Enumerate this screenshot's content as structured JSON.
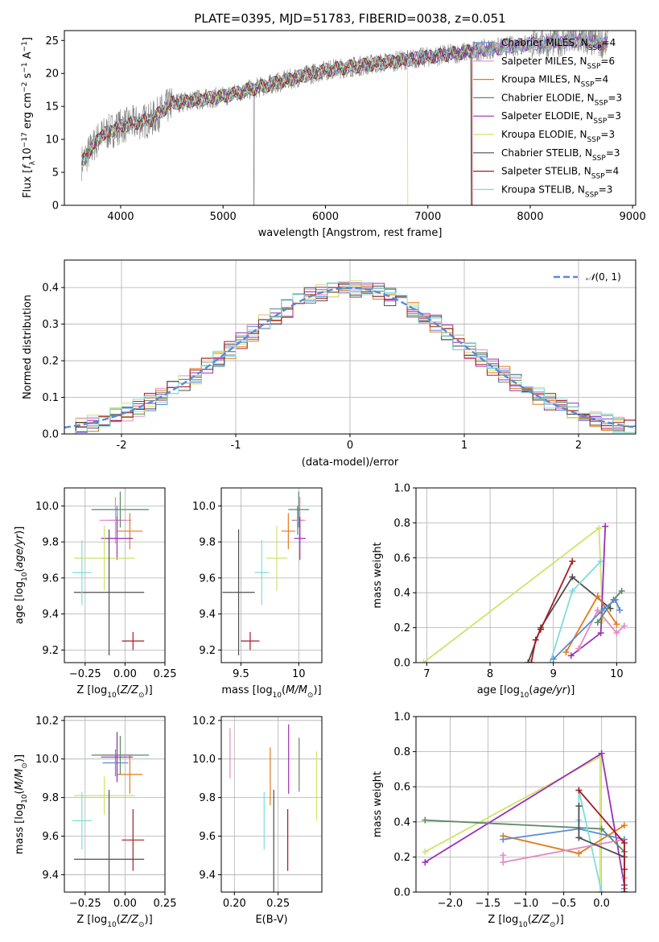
{
  "title": "PLATE=0395, MJD=51783, FIBERID=0038, z=0.051",
  "colors": {
    "Chabrier MILES": "#5b8ad7",
    "Salpeter MILES": "#e58ac3",
    "Kroupa MILES": "#e07b1a",
    "Chabrier ELODIE": "#5a8a62",
    "Salpeter ELODIE": "#9a2fb8",
    "Kroupa ELODIE": "#cfe36a",
    "Chabrier STELIB": "#4d4d4d",
    "Salpeter STELIB": "#a51d24",
    "Kroupa STELIB": "#7fdcdc",
    "normal": "#5b8ad7",
    "data": "#808080"
  },
  "chart_data": [
    {
      "id": "spectrum",
      "type": "line",
      "xlabel": "wavelength [Angstrom, rest frame]",
      "ylabel": "Flux [f_λ10^-17 erg cm^-2 s^-1 A^-1]",
      "xlim": [
        3450,
        9030
      ],
      "ylim": [
        0,
        26.5
      ],
      "xticks": [
        4000,
        5000,
        6000,
        7000,
        8000,
        9000
      ],
      "yticks": [
        0,
        5,
        10,
        15,
        20,
        25
      ],
      "grid": false,
      "legend_position": "top-right",
      "legend": [
        {
          "name": "Chabrier MILES",
          "n_ssp": 4
        },
        {
          "name": "Salpeter MILES",
          "n_ssp": 6
        },
        {
          "name": "Kroupa MILES",
          "n_ssp": 4
        },
        {
          "name": "Chabrier ELODIE",
          "n_ssp": 3
        },
        {
          "name": "Salpeter ELODIE",
          "n_ssp": 3
        },
        {
          "name": "Kroupa ELODIE",
          "n_ssp": 3
        },
        {
          "name": "Chabrier STELIB",
          "n_ssp": 3
        },
        {
          "name": "Salpeter STELIB",
          "n_ssp": 4
        },
        {
          "name": "Kroupa STELIB",
          "n_ssp": 3
        }
      ],
      "continuum": [
        [
          3620,
          6.5
        ],
        [
          3800,
          10.5
        ],
        [
          4000,
          12
        ],
        [
          4300,
          13
        ],
        [
          4500,
          15.5
        ],
        [
          5000,
          16.5
        ],
        [
          5500,
          18.5
        ],
        [
          6000,
          20.5
        ],
        [
          6500,
          21.5
        ],
        [
          7000,
          22.5
        ],
        [
          7500,
          23.5
        ],
        [
          8000,
          24.5
        ],
        [
          8500,
          25
        ],
        [
          8760,
          24.5
        ]
      ],
      "model_ranges": [
        {
          "name": "Kroupa ELODIE",
          "x": [
            3620,
            6800
          ]
        },
        {
          "name": "Chabrier STELIB",
          "x": [
            3620,
            7420
          ]
        },
        {
          "name": "Salpeter STELIB",
          "x": [
            3620,
            7430
          ]
        },
        {
          "name": "Kroupa STELIB",
          "x": [
            3620,
            8700
          ]
        }
      ]
    },
    {
      "id": "residual-histogram",
      "type": "step",
      "xlabel": "(data-model)/error",
      "ylabel": "Normed distribution",
      "xlim": [
        -2.5,
        2.5
      ],
      "ylim": [
        0,
        0.475
      ],
      "xticks": [
        -2,
        -1,
        0,
        1,
        2
      ],
      "yticks": [
        0.0,
        0.1,
        0.2,
        0.3,
        0.4
      ],
      "grid": true,
      "legend": [
        "𝒩(0, 1)"
      ],
      "legend_position": "top-right",
      "bin_width": 0.1,
      "mean_curve": "Gaussian N(0,1)"
    },
    {
      "id": "z-vs-age",
      "type": "errorbar",
      "xlabel": "Z [log10(Z/Z⊙)]",
      "ylabel": "age  [log10(age/yr)]",
      "xlim": [
        -0.38,
        0.25
      ],
      "ylim": [
        9.13,
        10.1
      ],
      "xticks": [
        -0.25,
        0.0,
        0.25
      ],
      "xtick_labels": [
        "−0.25",
        "0.00",
        "0.25"
      ],
      "yticks": [
        9.2,
        9.4,
        9.6,
        9.8,
        10.0
      ],
      "grid": true,
      "points": [
        {
          "name": "Chabrier MILES",
          "x": -0.05,
          "xerr": 0.05,
          "y": 9.92,
          "yerr": 0.08
        },
        {
          "name": "Salpeter MILES",
          "x": -0.06,
          "xerr": 0.1,
          "y": 9.92,
          "yerr": 0.13
        },
        {
          "name": "Kroupa MILES",
          "x": 0.03,
          "xerr": 0.08,
          "y": 9.86,
          "yerr": 0.1
        },
        {
          "name": "Chabrier ELODIE",
          "x": -0.03,
          "xerr": 0.18,
          "y": 9.98,
          "yerr": 0.1
        },
        {
          "name": "Salpeter ELODIE",
          "x": -0.05,
          "xerr": 0.1,
          "y": 9.82,
          "yerr": 0.12
        },
        {
          "name": "Kroupa ELODIE",
          "x": -0.13,
          "xerr": 0.19,
          "y": 9.71,
          "yerr": 0.18
        },
        {
          "name": "Chabrier STELIB",
          "x": -0.1,
          "xerr": 0.22,
          "y": 9.52,
          "yerr": 0.35
        },
        {
          "name": "Salpeter STELIB",
          "x": 0.05,
          "xerr": 0.07,
          "y": 9.25,
          "yerr": 0.05
        },
        {
          "name": "Kroupa STELIB",
          "x": -0.27,
          "xerr": 0.06,
          "y": 9.63,
          "yerr": 0.18
        }
      ]
    },
    {
      "id": "mass-vs-age",
      "type": "errorbar",
      "xlabel": "mass [log10(M/M⊙)]",
      "ylabel": "",
      "xlim": [
        9.33,
        10.2
      ],
      "ylim": [
        9.13,
        10.1
      ],
      "xticks": [
        9.5,
        10.0
      ],
      "yticks": [
        9.2,
        9.4,
        9.6,
        9.8,
        10.0
      ],
      "grid": true,
      "points": [
        {
          "name": "Chabrier MILES",
          "x": 9.99,
          "xerr": 0.05,
          "y": 9.92,
          "yerr": 0.08
        },
        {
          "name": "Salpeter MILES",
          "x": 10.01,
          "xerr": 0.05,
          "y": 9.92,
          "yerr": 0.13
        },
        {
          "name": "Kroupa MILES",
          "x": 9.91,
          "xerr": 0.06,
          "y": 9.86,
          "yerr": 0.1
        },
        {
          "name": "Chabrier ELODIE",
          "x": 10.0,
          "xerr": 0.09,
          "y": 9.98,
          "yerr": 0.1
        },
        {
          "name": "Salpeter ELODIE",
          "x": 10.01,
          "xerr": 0.05,
          "y": 9.82,
          "yerr": 0.12
        },
        {
          "name": "Kroupa ELODIE",
          "x": 9.81,
          "xerr": 0.09,
          "y": 9.71,
          "yerr": 0.18
        },
        {
          "name": "Chabrier STELIB",
          "x": 9.48,
          "xerr": 0.14,
          "y": 9.52,
          "yerr": 0.35
        },
        {
          "name": "Salpeter STELIB",
          "x": 9.58,
          "xerr": 0.08,
          "y": 9.25,
          "yerr": 0.05
        },
        {
          "name": "Kroupa STELIB",
          "x": 9.68,
          "xerr": 0.06,
          "y": 9.63,
          "yerr": 0.18
        }
      ]
    },
    {
      "id": "age-vs-weight",
      "type": "line",
      "xlabel": "age  [log10(age/yr)]",
      "ylabel": "mass weight",
      "xlim": [
        6.83,
        10.3
      ],
      "ylim": [
        0,
        1.0
      ],
      "xticks": [
        7,
        8,
        9,
        10
      ],
      "yticks": [
        0.0,
        0.2,
        0.4,
        0.6,
        0.8,
        1.0
      ],
      "grid": true,
      "series": [
        {
          "name": "Kroupa ELODIE",
          "x": [
            6.95,
            9.72,
            9.78
          ],
          "y": [
            0.0,
            0.77,
            0.24
          ]
        },
        {
          "name": "Chabrier STELIB",
          "x": [
            8.6,
            8.8,
            9.3,
            9.9
          ],
          "y": [
            0.0,
            0.2,
            0.49,
            0.31
          ]
        },
        {
          "name": "Salpeter STELIB",
          "x": [
            8.65,
            8.72,
            8.8,
            9.3
          ],
          "y": [
            0.0,
            0.13,
            0.19,
            0.58
          ]
        },
        {
          "name": "Kroupa STELIB",
          "x": [
            8.95,
            9.3,
            9.75
          ],
          "y": [
            0.0,
            0.41,
            0.58
          ]
        },
        {
          "name": "Salpeter ELODIE",
          "x": [
            9.28,
            9.75,
            9.82
          ],
          "y": [
            0.04,
            0.17,
            0.78
          ]
        },
        {
          "name": "Kroupa MILES",
          "x": [
            9.2,
            9.7,
            10.0
          ],
          "y": [
            0.06,
            0.38,
            0.22
          ]
        },
        {
          "name": "Salpeter MILES",
          "x": [
            9.4,
            9.7,
            10.0,
            10.12
          ],
          "y": [
            0.08,
            0.3,
            0.17,
            0.21
          ]
        },
        {
          "name": "Chabrier ELODIE",
          "x": [
            9.7,
            9.95,
            10.08
          ],
          "y": [
            0.23,
            0.36,
            0.41
          ]
        },
        {
          "name": "Chabrier MILES",
          "x": [
            9.0,
            9.8,
            9.98,
            10.05
          ],
          "y": [
            0.02,
            0.31,
            0.36,
            0.3
          ]
        }
      ]
    },
    {
      "id": "z-vs-mass",
      "type": "errorbar",
      "xlabel": "Z [log10(Z/Z⊙)]",
      "ylabel": "mass [log10(M/M⊙)]",
      "xlim": [
        -0.38,
        0.25
      ],
      "ylim": [
        9.31,
        10.22
      ],
      "xticks": [
        -0.25,
        0.0,
        0.25
      ],
      "xtick_labels": [
        "−0.25",
        "0.00",
        "0.25"
      ],
      "yticks": [
        9.4,
        9.6,
        9.8,
        10.0,
        10.2
      ],
      "grid": true,
      "points": [
        {
          "name": "Chabrier MILES",
          "x": -0.06,
          "xerr": 0.08,
          "y": 9.98,
          "yerr": 0.07
        },
        {
          "name": "Salpeter MILES",
          "x": -0.05,
          "xerr": 0.1,
          "y": 10.02,
          "yerr": 0.12
        },
        {
          "name": "Kroupa MILES",
          "x": 0.03,
          "xerr": 0.08,
          "y": 9.92,
          "yerr": 0.1
        },
        {
          "name": "Chabrier ELODIE",
          "x": -0.03,
          "xerr": 0.18,
          "y": 10.02,
          "yerr": 0.1
        },
        {
          "name": "Salpeter ELODIE",
          "x": -0.05,
          "xerr": 0.1,
          "y": 10.01,
          "yerr": 0.13
        },
        {
          "name": "Kroupa ELODIE",
          "x": -0.13,
          "xerr": 0.19,
          "y": 9.81,
          "yerr": 0.1
        },
        {
          "name": "Chabrier STELIB",
          "x": -0.1,
          "xerr": 0.22,
          "y": 9.48,
          "yerr": 0.36
        },
        {
          "name": "Salpeter STELIB",
          "x": 0.05,
          "xerr": 0.07,
          "y": 9.58,
          "yerr": 0.16
        },
        {
          "name": "Kroupa STELIB",
          "x": -0.27,
          "xerr": 0.06,
          "y": 9.68,
          "yerr": 0.15
        }
      ]
    },
    {
      "id": "ebv-vs-mass",
      "type": "errorbar",
      "xlabel": "E(B-V)",
      "ylabel": "",
      "xlim": [
        0.185,
        0.3
      ],
      "ylim": [
        9.31,
        10.22
      ],
      "xticks": [
        0.2,
        0.25
      ],
      "xtick_labels": [
        "0.20",
        "0.25"
      ],
      "yticks": [
        9.4,
        9.6,
        9.8,
        10.0,
        10.2
      ],
      "grid": true,
      "points": [
        {
          "name": "Salpeter MILES",
          "x": 0.195,
          "y": 10.03,
          "yerr": 0.13
        },
        {
          "name": "Chabrier STELIB",
          "x": 0.245,
          "y": 9.48,
          "yerr": 0.36
        },
        {
          "name": "Kroupa STELIB",
          "x": 0.234,
          "y": 9.68,
          "yerr": 0.15
        },
        {
          "name": "Kroupa MILES",
          "x": 0.241,
          "y": 9.91,
          "yerr": 0.15
        },
        {
          "name": "Salpeter STELIB",
          "x": 0.261,
          "y": 9.58,
          "yerr": 0.16
        },
        {
          "name": "Salpeter ELODIE",
          "x": 0.262,
          "y": 10.0,
          "yerr": 0.18
        },
        {
          "name": "Chabrier ELODIE",
          "x": 0.274,
          "y": 9.97,
          "yerr": 0.14
        },
        {
          "name": "Kroupa ELODIE",
          "x": 0.294,
          "y": 9.86,
          "yerr": 0.18
        }
      ]
    },
    {
      "id": "z-vs-weight",
      "type": "line",
      "xlabel": "Z [log10(Z/Z⊙)]",
      "ylabel": "mass weight",
      "xlim": [
        -2.45,
        0.45
      ],
      "ylim": [
        0,
        1.0
      ],
      "xticks": [
        -2.0,
        -1.5,
        -1.0,
        -0.5,
        0.0
      ],
      "xtick_labels": [
        "−2.0",
        "−1.5",
        "−1.0",
        "−0.5",
        "0.0"
      ],
      "yticks": [
        0.0,
        0.2,
        0.4,
        0.6,
        0.8,
        1.0
      ],
      "grid": true,
      "series": [
        {
          "name": "Kroupa ELODIE",
          "x": [
            -2.33,
            -0.02,
            -0.02
          ],
          "y": [
            0.23,
            0.77,
            0.0
          ]
        },
        {
          "name": "Salpeter ELODIE",
          "x": [
            -2.33,
            0.0,
            0.3
          ],
          "y": [
            0.17,
            0.79,
            0.04
          ]
        },
        {
          "name": "Chabrier ELODIE",
          "x": [
            -2.33,
            0.0,
            0.3
          ],
          "y": [
            0.41,
            0.36,
            0.23
          ]
        },
        {
          "name": "Kroupa MILES",
          "x": [
            -1.3,
            -0.3,
            0.3
          ],
          "y": [
            0.32,
            0.22,
            0.38
          ]
        },
        {
          "name": "Salpeter MILES",
          "x": [
            -1.3,
            -1.3,
            0.3,
            0.3
          ],
          "y": [
            0.21,
            0.17,
            0.3,
            0.08
          ]
        },
        {
          "name": "Chabrier MILES",
          "x": [
            -1.3,
            -0.3,
            0.3,
            0.3
          ],
          "y": [
            0.3,
            0.36,
            0.3,
            0.02
          ]
        },
        {
          "name": "Kroupa STELIB",
          "x": [
            -0.3,
            -0.3,
            0.0
          ],
          "y": [
            0.41,
            0.58,
            0.0
          ]
        },
        {
          "name": "Chabrier STELIB",
          "x": [
            -0.3,
            -0.3,
            0.3,
            0.3
          ],
          "y": [
            0.49,
            0.31,
            0.2,
            0.0
          ]
        },
        {
          "name": "Salpeter STELIB",
          "x": [
            -0.3,
            0.3,
            0.3,
            0.3
          ],
          "y": [
            0.58,
            0.28,
            0.13,
            0.0
          ]
        }
      ]
    }
  ]
}
